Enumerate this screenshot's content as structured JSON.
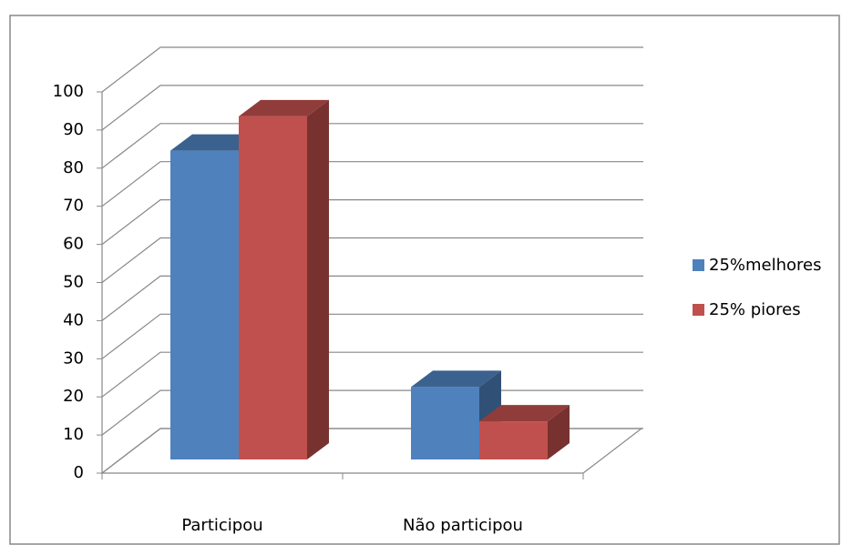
{
  "chart_data": {
    "type": "bar3d",
    "categories": [
      "Participou",
      "Não participou"
    ],
    "series": [
      {
        "name": "25%melhores",
        "color": "#4f81bd",
        "values": [
          81,
          19
        ]
      },
      {
        "name": "25% piores",
        "color": "#c0504d",
        "values": [
          90,
          10
        ]
      }
    ],
    "ylim": [
      0,
      100
    ],
    "yticks": [
      0,
      10,
      20,
      30,
      40,
      50,
      60,
      70,
      80,
      90,
      100
    ],
    "grid": true,
    "legend": "right"
  }
}
